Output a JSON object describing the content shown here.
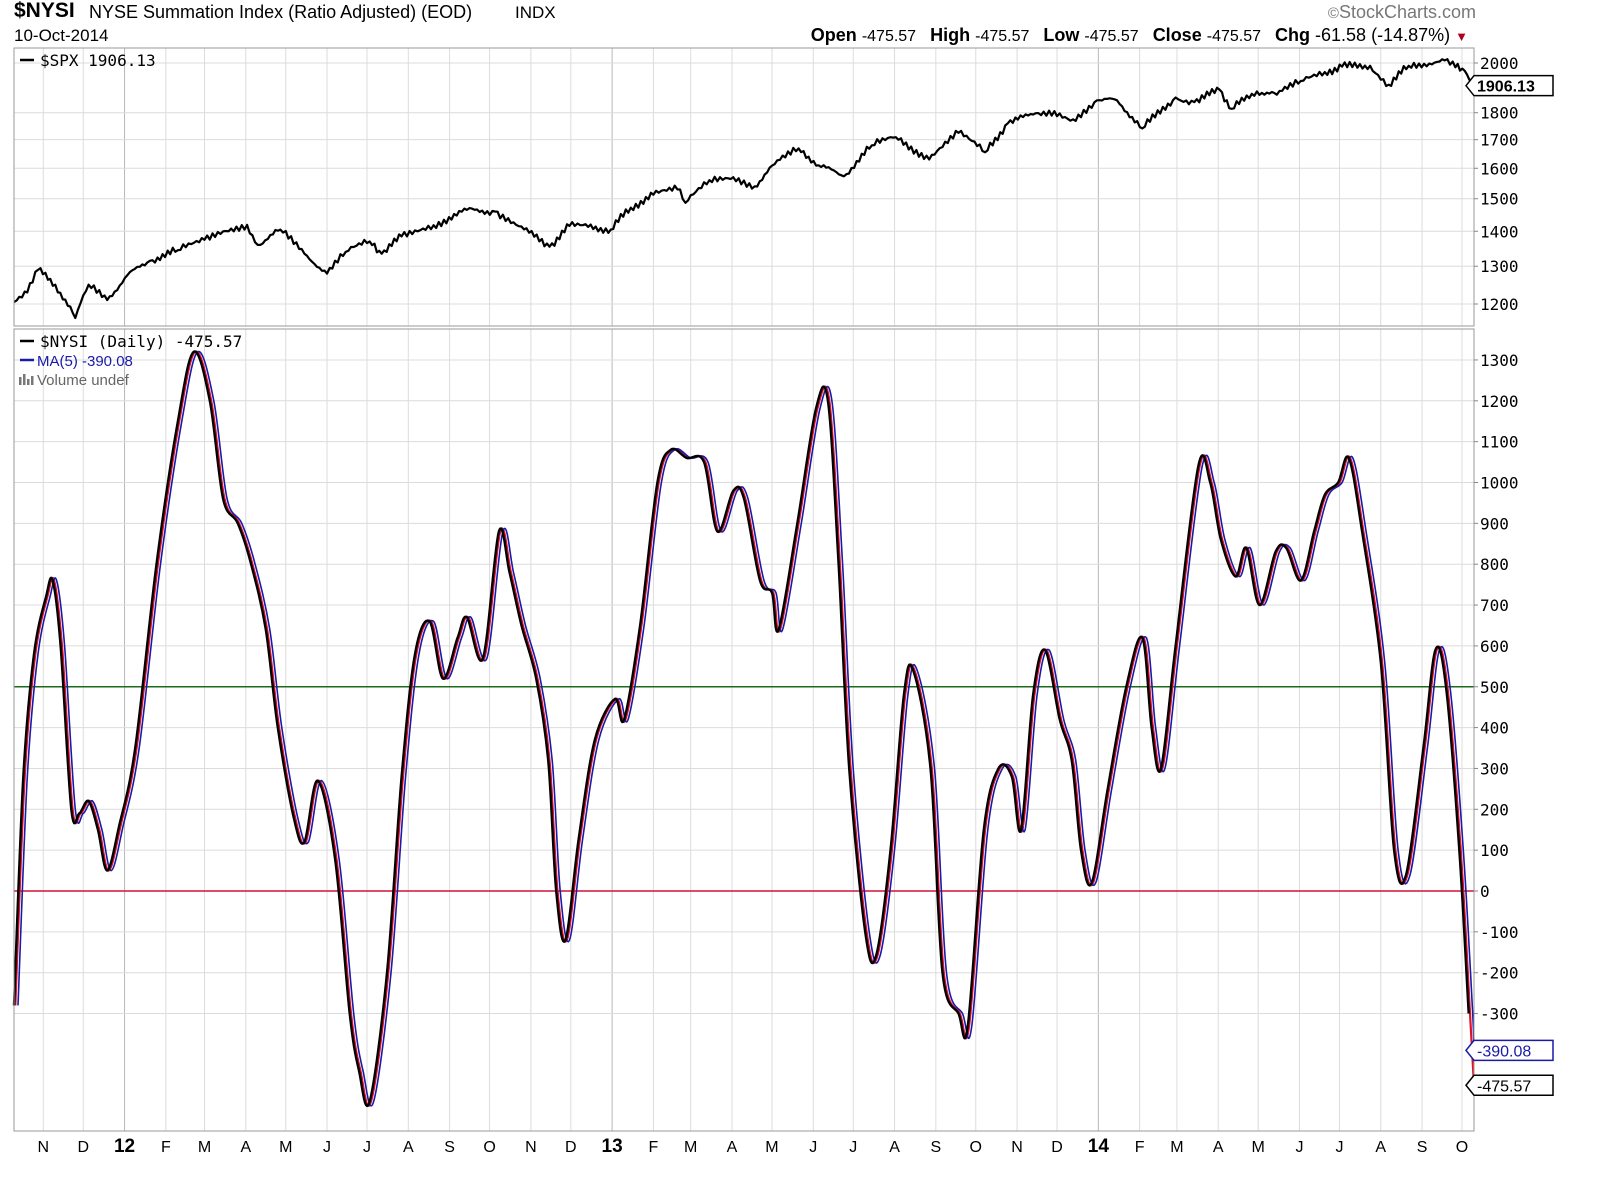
{
  "header": {
    "symbol": "$NYSI",
    "name": "NYSE Summation Index (Ratio Adjusted) (EOD)",
    "exchange": "INDX",
    "date": "10-Oct-2014",
    "brand": "StockCharts.com",
    "open_label": "Open",
    "open": "-475.57",
    "high_label": "High",
    "high": "-475.57",
    "low_label": "Low",
    "low": "-475.57",
    "close_label": "Close",
    "close": "-475.57",
    "chg_label": "Chg",
    "chg": "-61.58 (-14.87%)",
    "down_color": "#b00020"
  },
  "chart_data": [
    {
      "type": "line",
      "panel": "top",
      "legend": [
        "$SPX 1906.13"
      ],
      "last_value_label": "1906.13",
      "y_ticks": [
        1200,
        1300,
        1400,
        1500,
        1600,
        1700,
        1800,
        2000
      ],
      "ylim": [
        1150,
        2030
      ],
      "y_scale": "log",
      "grid": true,
      "series": [
        {
          "name": "$SPX",
          "color": "#000000",
          "points": [
            [
              "2011-10-10",
              1205
            ],
            [
              "2011-10-20",
              1230
            ],
            [
              "2011-10-28",
              1290
            ],
            [
              "2011-11-10",
              1250
            ],
            [
              "2011-11-25",
              1165
            ],
            [
              "2011-12-05",
              1250
            ],
            [
              "2011-12-19",
              1210
            ],
            [
              "2012-01-03",
              1275
            ],
            [
              "2012-01-20",
              1315
            ],
            [
              "2012-02-10",
              1345
            ],
            [
              "2012-03-01",
              1375
            ],
            [
              "2012-03-15",
              1400
            ],
            [
              "2012-04-02",
              1419
            ],
            [
              "2012-04-10",
              1360
            ],
            [
              "2012-04-27",
              1405
            ],
            [
              "2012-05-15",
              1335
            ],
            [
              "2012-06-01",
              1280
            ],
            [
              "2012-06-15",
              1340
            ],
            [
              "2012-07-03",
              1370
            ],
            [
              "2012-07-12",
              1335
            ],
            [
              "2012-07-27",
              1385
            ],
            [
              "2012-08-20",
              1418
            ],
            [
              "2012-09-14",
              1465
            ],
            [
              "2012-10-05",
              1460
            ],
            [
              "2012-10-23",
              1415
            ],
            [
              "2012-11-15",
              1355
            ],
            [
              "2012-11-30",
              1416
            ],
            [
              "2012-12-14",
              1413
            ],
            [
              "2012-12-31",
              1405
            ],
            [
              "2013-01-15",
              1472
            ],
            [
              "2013-02-01",
              1513
            ],
            [
              "2013-02-19",
              1530
            ],
            [
              "2013-02-25",
              1487
            ],
            [
              "2013-03-15",
              1560
            ],
            [
              "2013-04-02",
              1570
            ],
            [
              "2013-04-18",
              1540
            ],
            [
              "2013-05-03",
              1614
            ],
            [
              "2013-05-21",
              1669
            ],
            [
              "2013-06-05",
              1610
            ],
            [
              "2013-06-24",
              1573
            ],
            [
              "2013-07-15",
              1680
            ],
            [
              "2013-08-02",
              1709
            ],
            [
              "2013-08-27",
              1630
            ],
            [
              "2013-09-18",
              1725
            ],
            [
              "2013-10-08",
              1655
            ],
            [
              "2013-10-25",
              1760
            ],
            [
              "2013-11-15",
              1798
            ],
            [
              "2013-11-29",
              1806
            ],
            [
              "2013-12-13",
              1775
            ],
            [
              "2013-12-31",
              1848
            ],
            [
              "2014-01-15",
              1848
            ],
            [
              "2014-02-03",
              1741
            ],
            [
              "2014-02-28",
              1859
            ],
            [
              "2014-03-14",
              1841
            ],
            [
              "2014-04-02",
              1890
            ],
            [
              "2014-04-11",
              1815
            ],
            [
              "2014-04-30",
              1883
            ],
            [
              "2014-05-15",
              1870
            ],
            [
              "2014-06-02",
              1925
            ],
            [
              "2014-06-20",
              1962
            ],
            [
              "2014-07-03",
              1985
            ],
            [
              "2014-07-24",
              1988
            ],
            [
              "2014-08-07",
              1910
            ],
            [
              "2014-08-22",
              1988
            ],
            [
              "2014-09-18",
              2011
            ],
            [
              "2014-09-26",
              1982
            ],
            [
              "2014-10-03",
              1967
            ],
            [
              "2014-10-10",
              1906
            ]
          ]
        }
      ]
    },
    {
      "type": "line",
      "panel": "bottom",
      "legend": [
        "$NYSI (Daily) -475.57",
        "MA(5) -390.08",
        "Volume undef"
      ],
      "last_value_labels": [
        "-390.08",
        "-475.57"
      ],
      "y_ticks": [
        -300,
        -200,
        -100,
        0,
        100,
        200,
        300,
        400,
        500,
        600,
        700,
        800,
        900,
        1000,
        1100,
        1200,
        1300
      ],
      "ylim": [
        -560,
        1350
      ],
      "reference_lines": [
        {
          "value": 500,
          "color": "#1a6b1a"
        },
        {
          "value": 0,
          "color": "#d0103a"
        }
      ],
      "grid": true,
      "series": [
        {
          "name": "$NYSI",
          "color": "#000000",
          "points": [
            [
              "2011-10-10",
              -280
            ],
            [
              "2011-10-17",
              280
            ],
            [
              "2011-10-25",
              580
            ],
            [
              "2011-11-03",
              720
            ],
            [
              "2011-11-08",
              760
            ],
            [
              "2011-11-14",
              600
            ],
            [
              "2011-11-22",
              200
            ],
            [
              "2011-11-28",
              190
            ],
            [
              "2011-12-05",
              220
            ],
            [
              "2011-12-12",
              150
            ],
            [
              "2011-12-19",
              50
            ],
            [
              "2011-12-28",
              160
            ],
            [
              "2012-01-09",
              350
            ],
            [
              "2012-01-25",
              800
            ],
            [
              "2012-02-10",
              1150
            ],
            [
              "2012-02-22",
              1320
            ],
            [
              "2012-03-05",
              1200
            ],
            [
              "2012-03-15",
              960
            ],
            [
              "2012-03-26",
              900
            ],
            [
              "2012-04-05",
              800
            ],
            [
              "2012-04-16",
              640
            ],
            [
              "2012-04-25",
              400
            ],
            [
              "2012-05-07",
              180
            ],
            [
              "2012-05-15",
              120
            ],
            [
              "2012-05-25",
              270
            ],
            [
              "2012-06-07",
              80
            ],
            [
              "2012-06-18",
              -300
            ],
            [
              "2012-06-25",
              -440
            ],
            [
              "2012-07-03",
              -515
            ],
            [
              "2012-07-16",
              -200
            ],
            [
              "2012-07-27",
              280
            ],
            [
              "2012-08-06",
              580
            ],
            [
              "2012-08-17",
              660
            ],
            [
              "2012-08-27",
              520
            ],
            [
              "2012-09-07",
              620
            ],
            [
              "2012-09-14",
              670
            ],
            [
              "2012-09-26",
              570
            ],
            [
              "2012-10-08",
              880
            ],
            [
              "2012-10-16",
              780
            ],
            [
              "2012-10-25",
              650
            ],
            [
              "2012-11-05",
              520
            ],
            [
              "2012-11-14",
              320
            ],
            [
              "2012-11-20",
              0
            ],
            [
              "2012-11-27",
              -120
            ],
            [
              "2012-12-07",
              130
            ],
            [
              "2012-12-19",
              370
            ],
            [
              "2013-01-03",
              470
            ],
            [
              "2013-01-10",
              420
            ],
            [
              "2013-01-22",
              650
            ],
            [
              "2013-02-04",
              1000
            ],
            [
              "2013-02-14",
              1080
            ],
            [
              "2013-02-26",
              1060
            ],
            [
              "2013-03-11",
              1050
            ],
            [
              "2013-03-21",
              880
            ],
            [
              "2013-04-02",
              980
            ],
            [
              "2013-04-10",
              960
            ],
            [
              "2013-04-22",
              760
            ],
            [
              "2013-05-01",
              730
            ],
            [
              "2013-05-06",
              640
            ],
            [
              "2013-05-20",
              900
            ],
            [
              "2013-06-03",
              1180
            ],
            [
              "2013-06-12",
              1200
            ],
            [
              "2013-06-20",
              800
            ],
            [
              "2013-06-28",
              300
            ],
            [
              "2013-07-10",
              -100
            ],
            [
              "2013-07-18",
              -160
            ],
            [
              "2013-07-29",
              100
            ],
            [
              "2013-08-08",
              480
            ],
            [
              "2013-08-15",
              540
            ],
            [
              "2013-08-28",
              300
            ],
            [
              "2013-09-06",
              -200
            ],
            [
              "2013-09-18",
              -300
            ],
            [
              "2013-09-25",
              -330
            ],
            [
              "2013-10-07",
              150
            ],
            [
              "2013-10-18",
              300
            ],
            [
              "2013-10-28",
              280
            ],
            [
              "2013-11-04",
              150
            ],
            [
              "2013-11-13",
              480
            ],
            [
              "2013-11-22",
              590
            ],
            [
              "2013-12-03",
              420
            ],
            [
              "2013-12-12",
              320
            ],
            [
              "2013-12-19",
              100
            ],
            [
              "2013-12-27",
              20
            ],
            [
              "2014-01-08",
              250
            ],
            [
              "2014-01-22",
              500
            ],
            [
              "2014-02-03",
              620
            ],
            [
              "2014-02-10",
              400
            ],
            [
              "2014-02-17",
              300
            ],
            [
              "2014-02-28",
              600
            ],
            [
              "2014-03-17",
              1040
            ],
            [
              "2014-03-26",
              1000
            ],
            [
              "2014-04-03",
              860
            ],
            [
              "2014-04-14",
              770
            ],
            [
              "2014-04-22",
              840
            ],
            [
              "2014-05-02",
              700
            ],
            [
              "2014-05-14",
              830
            ],
            [
              "2014-05-22",
              840
            ],
            [
              "2014-06-02",
              760
            ],
            [
              "2014-06-12",
              880
            ],
            [
              "2014-06-20",
              970
            ],
            [
              "2014-06-30",
              1000
            ],
            [
              "2014-07-08",
              1060
            ],
            [
              "2014-07-18",
              880
            ],
            [
              "2014-08-01",
              560
            ],
            [
              "2014-08-11",
              100
            ],
            [
              "2014-08-20",
              40
            ],
            [
              "2014-09-02",
              350
            ],
            [
              "2014-09-11",
              590
            ],
            [
              "2014-09-19",
              500
            ],
            [
              "2014-09-29",
              100
            ],
            [
              "2014-10-06",
              -300
            ],
            [
              "2014-10-10",
              -475.57
            ]
          ]
        },
        {
          "name": "MA(5)",
          "color": "#1a1aa8",
          "lag_days": 3,
          "last_value": -390.08
        },
        {
          "name": "MA(5) envelope",
          "color": "#e0102a",
          "lag_days": 1
        }
      ]
    }
  ],
  "x_axis": {
    "start": "2011-10-10",
    "end": "2014-10-10",
    "labels": [
      {
        "date": "2011-11-01",
        "text": "N",
        "bold": false
      },
      {
        "date": "2011-12-01",
        "text": "D",
        "bold": false
      },
      {
        "date": "2012-01-01",
        "text": "12",
        "bold": true
      },
      {
        "date": "2012-02-01",
        "text": "F",
        "bold": false
      },
      {
        "date": "2012-03-01",
        "text": "M",
        "bold": false
      },
      {
        "date": "2012-04-01",
        "text": "A",
        "bold": false
      },
      {
        "date": "2012-05-01",
        "text": "M",
        "bold": false
      },
      {
        "date": "2012-06-01",
        "text": "J",
        "bold": false
      },
      {
        "date": "2012-07-01",
        "text": "J",
        "bold": false
      },
      {
        "date": "2012-08-01",
        "text": "A",
        "bold": false
      },
      {
        "date": "2012-09-01",
        "text": "S",
        "bold": false
      },
      {
        "date": "2012-10-01",
        "text": "O",
        "bold": false
      },
      {
        "date": "2012-11-01",
        "text": "N",
        "bold": false
      },
      {
        "date": "2012-12-01",
        "text": "D",
        "bold": false
      },
      {
        "date": "2013-01-01",
        "text": "13",
        "bold": true
      },
      {
        "date": "2013-02-01",
        "text": "F",
        "bold": false
      },
      {
        "date": "2013-03-01",
        "text": "M",
        "bold": false
      },
      {
        "date": "2013-04-01",
        "text": "A",
        "bold": false
      },
      {
        "date": "2013-05-01",
        "text": "M",
        "bold": false
      },
      {
        "date": "2013-06-01",
        "text": "J",
        "bold": false
      },
      {
        "date": "2013-07-01",
        "text": "J",
        "bold": false
      },
      {
        "date": "2013-08-01",
        "text": "A",
        "bold": false
      },
      {
        "date": "2013-09-01",
        "text": "S",
        "bold": false
      },
      {
        "date": "2013-10-01",
        "text": "O",
        "bold": false
      },
      {
        "date": "2013-11-01",
        "text": "N",
        "bold": false
      },
      {
        "date": "2013-12-01",
        "text": "D",
        "bold": false
      },
      {
        "date": "2014-01-01",
        "text": "14",
        "bold": true
      },
      {
        "date": "2014-02-01",
        "text": "F",
        "bold": false
      },
      {
        "date": "2014-03-01",
        "text": "M",
        "bold": false
      },
      {
        "date": "2014-04-01",
        "text": "A",
        "bold": false
      },
      {
        "date": "2014-05-01",
        "text": "M",
        "bold": false
      },
      {
        "date": "2014-06-01",
        "text": "J",
        "bold": false
      },
      {
        "date": "2014-07-01",
        "text": "J",
        "bold": false
      },
      {
        "date": "2014-08-01",
        "text": "A",
        "bold": false
      },
      {
        "date": "2014-09-01",
        "text": "S",
        "bold": false
      },
      {
        "date": "2014-10-01",
        "text": "O",
        "bold": false
      }
    ]
  }
}
